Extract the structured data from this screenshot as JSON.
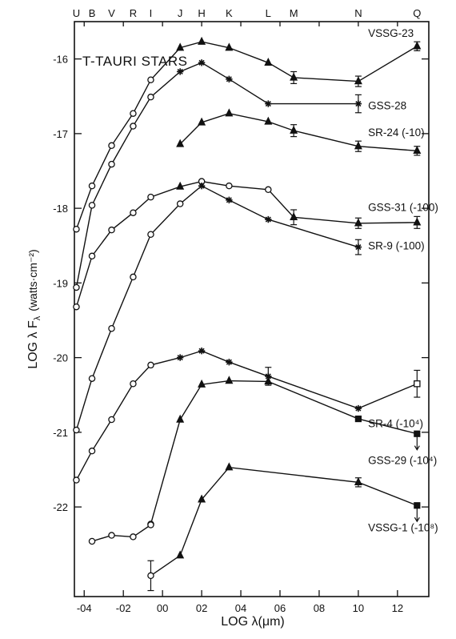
{
  "chart_data": {
    "type": "line",
    "title": "T-TAURI STARS",
    "xlabel": "LOG λ(μm)",
    "ylabel": "LOG λ F",
    "ylabel_sub": "λ",
    "ylabel_units": "(watts·cm⁻²)",
    "xlim": [
      -0.45,
      1.36
    ],
    "ylim": [
      -23.2,
      -15.5
    ],
    "x_ticks": [
      -0.4,
      -0.2,
      0.0,
      0.2,
      0.4,
      0.6,
      0.8,
      1.0,
      1.2
    ],
    "x_tick_labels": [
      "-04",
      "-02",
      "00",
      "02",
      "04",
      "06",
      "08",
      "10",
      "12"
    ],
    "y_ticks": [
      -16,
      -17,
      -18,
      -19,
      -20,
      -21,
      -22
    ],
    "y_tick_labels": [
      "-16",
      "-17",
      "-18",
      "-19",
      "-20",
      "-21",
      "-22"
    ],
    "bands": [
      {
        "label": "U",
        "x": -0.44
      },
      {
        "label": "B",
        "x": -0.36
      },
      {
        "label": "V",
        "x": -0.26
      },
      {
        "label": "R",
        "x": -0.15
      },
      {
        "label": "I",
        "x": -0.06
      },
      {
        "label": "J",
        "x": 0.09
      },
      {
        "label": "H",
        "x": 0.2
      },
      {
        "label": "K",
        "x": 0.34
      },
      {
        "label": "L",
        "x": 0.54
      },
      {
        "label": "M",
        "x": 0.67
      },
      {
        "label": "N",
        "x": 1.0
      },
      {
        "label": "Q",
        "x": 1.3
      }
    ],
    "series": [
      {
        "name": "VSSG-23",
        "marker": "triangle",
        "points": [
          {
            "x": -0.44,
            "y": -18.28,
            "m": "open"
          },
          {
            "x": -0.36,
            "y": -17.7,
            "m": "open"
          },
          {
            "x": -0.26,
            "y": -17.16,
            "m": "open"
          },
          {
            "x": -0.15,
            "y": -16.73,
            "m": "open"
          },
          {
            "x": -0.06,
            "y": -16.28,
            "m": "open"
          },
          {
            "x": 0.09,
            "y": -15.85
          },
          {
            "x": 0.2,
            "y": -15.77
          },
          {
            "x": 0.34,
            "y": -15.85
          },
          {
            "x": 0.54,
            "y": -16.05
          },
          {
            "x": 0.67,
            "y": -16.25,
            "err": 0.08
          },
          {
            "x": 1.0,
            "y": -16.3,
            "err": 0.07
          },
          {
            "x": 1.3,
            "y": -15.83,
            "err": 0.06
          }
        ]
      },
      {
        "name": "GSS-28",
        "marker": "star",
        "points": [
          {
            "x": -0.44,
            "y": -19.06,
            "m": "open"
          },
          {
            "x": -0.36,
            "y": -17.96,
            "m": "open"
          },
          {
            "x": -0.26,
            "y": -17.41,
            "m": "open"
          },
          {
            "x": -0.15,
            "y": -16.9,
            "m": "open"
          },
          {
            "x": -0.06,
            "y": -16.51,
            "m": "open"
          },
          {
            "x": 0.09,
            "y": -16.17
          },
          {
            "x": 0.2,
            "y": -16.05
          },
          {
            "x": 0.34,
            "y": -16.27
          },
          {
            "x": 0.54,
            "y": -16.6
          },
          {
            "x": 1.0,
            "y": -16.6,
            "err": 0.12
          }
        ]
      },
      {
        "name": "SR-24 (-10)",
        "marker": "triangle",
        "points": [
          {
            "x": 0.09,
            "y": -17.14
          },
          {
            "x": 0.2,
            "y": -16.85
          },
          {
            "x": 0.34,
            "y": -16.73
          },
          {
            "x": 0.54,
            "y": -16.84
          },
          {
            "x": 0.67,
            "y": -16.96,
            "err": 0.08
          },
          {
            "x": 1.0,
            "y": -17.17,
            "err": 0.07
          },
          {
            "x": 1.3,
            "y": -17.23,
            "err": 0.06
          }
        ]
      },
      {
        "name": "GSS-31 (-100)",
        "marker": "triangle",
        "points": [
          {
            "x": -0.44,
            "y": -19.32,
            "m": "open"
          },
          {
            "x": -0.36,
            "y": -18.64,
            "m": "open"
          },
          {
            "x": -0.26,
            "y": -18.29,
            "m": "open"
          },
          {
            "x": -0.15,
            "y": -18.06,
            "m": "open"
          },
          {
            "x": -0.06,
            "y": -17.85,
            "m": "open"
          },
          {
            "x": 0.09,
            "y": -17.71
          },
          {
            "x": 0.2,
            "y": -17.64,
            "m": "open"
          },
          {
            "x": 0.34,
            "y": -17.7,
            "m": "open"
          },
          {
            "x": 0.54,
            "y": -17.75,
            "m": "open"
          },
          {
            "x": 0.67,
            "y": -18.12,
            "err": 0.1
          },
          {
            "x": 1.0,
            "y": -18.2,
            "err": 0.07
          },
          {
            "x": 1.3,
            "y": -18.19,
            "err": 0.08
          }
        ]
      },
      {
        "name": "SR-9 (-100)",
        "marker": "star",
        "points": [
          {
            "x": -0.44,
            "y": -20.97,
            "m": "open"
          },
          {
            "x": -0.36,
            "y": -20.28,
            "m": "open"
          },
          {
            "x": -0.26,
            "y": -19.61,
            "m": "open"
          },
          {
            "x": -0.15,
            "y": -18.92,
            "m": "open"
          },
          {
            "x": -0.06,
            "y": -18.35,
            "m": "open"
          },
          {
            "x": 0.09,
            "y": -17.94,
            "m": "open"
          },
          {
            "x": 0.2,
            "y": -17.7
          },
          {
            "x": 0.34,
            "y": -17.89
          },
          {
            "x": 0.54,
            "y": -18.15
          },
          {
            "x": 1.0,
            "y": -18.52,
            "err": 0.1
          }
        ]
      },
      {
        "name": "SR-4 (-10⁴)",
        "marker": "star",
        "points": [
          {
            "x": -0.44,
            "y": -21.64,
            "m": "open"
          },
          {
            "x": -0.36,
            "y": -21.25,
            "m": "open"
          },
          {
            "x": -0.26,
            "y": -20.83,
            "m": "open"
          },
          {
            "x": -0.15,
            "y": -20.35,
            "m": "open"
          },
          {
            "x": -0.06,
            "y": -20.1,
            "m": "open"
          },
          {
            "x": 0.09,
            "y": -20.0
          },
          {
            "x": 0.2,
            "y": -19.91
          },
          {
            "x": 0.34,
            "y": -20.06
          },
          {
            "x": 0.54,
            "y": -20.25,
            "err": 0.12
          },
          {
            "x": 1.0,
            "y": -20.68
          },
          {
            "x": 1.3,
            "y": -20.35,
            "m": "open-square",
            "err": 0.18
          }
        ]
      },
      {
        "name": "GSS-29 (-10⁴)",
        "marker": "triangle",
        "points": [
          {
            "x": -0.06,
            "y": -22.23,
            "m": "open"
          },
          {
            "x": 0.09,
            "y": -20.83
          },
          {
            "x": 0.2,
            "y": -20.36
          },
          {
            "x": 0.34,
            "y": -20.31
          },
          {
            "x": 0.54,
            "y": -20.32
          },
          {
            "x": 1.0,
            "y": -20.82,
            "m": "square"
          },
          {
            "x": 1.3,
            "y": -21.02,
            "m": "square",
            "limit": true
          }
        ]
      },
      {
        "name": "VSSG-1 (-10⁸)",
        "marker": "triangle",
        "points": [
          {
            "x": -0.36,
            "y": -22.46,
            "m": "open"
          },
          {
            "x": -0.26,
            "y": -22.38,
            "m": "open"
          },
          {
            "x": -0.15,
            "y": -22.4,
            "m": "open"
          },
          {
            "x": -0.06,
            "y": -22.24,
            "m": "open"
          }
        ]
      },
      {
        "name": "",
        "marker": "triangle",
        "points": [
          {
            "x": -0.06,
            "y": -22.92,
            "m": "open",
            "err": 0.2
          },
          {
            "x": 0.09,
            "y": -22.65
          },
          {
            "x": 0.2,
            "y": -21.9
          },
          {
            "x": 0.34,
            "y": -21.47
          },
          {
            "x": 1.0,
            "y": -21.67,
            "err": 0.06
          },
          {
            "x": 1.3,
            "y": -21.98,
            "m": "square",
            "limit": true
          }
        ]
      }
    ],
    "labels": [
      {
        "text": "VSSG-23",
        "x": 1.05,
        "y": -15.65
      },
      {
        "text": "GSS-28",
        "x": 1.05,
        "y": -16.62
      },
      {
        "text": "SR-24 (-10)",
        "x": 1.05,
        "y": -16.98
      },
      {
        "text": "GSS-31 (-100)",
        "x": 1.05,
        "y": -17.98
      },
      {
        "text": "SR-9 (-100)",
        "x": 1.05,
        "y": -18.5
      },
      {
        "text": "SR-4 (-10⁴)",
        "x": 1.05,
        "y": -20.88
      },
      {
        "text": "GSS-29 (-10⁴)",
        "x": 1.05,
        "y": -21.37
      },
      {
        "text": "VSSG-1 (-10⁸)",
        "x": 1.05,
        "y": -22.27
      }
    ]
  }
}
